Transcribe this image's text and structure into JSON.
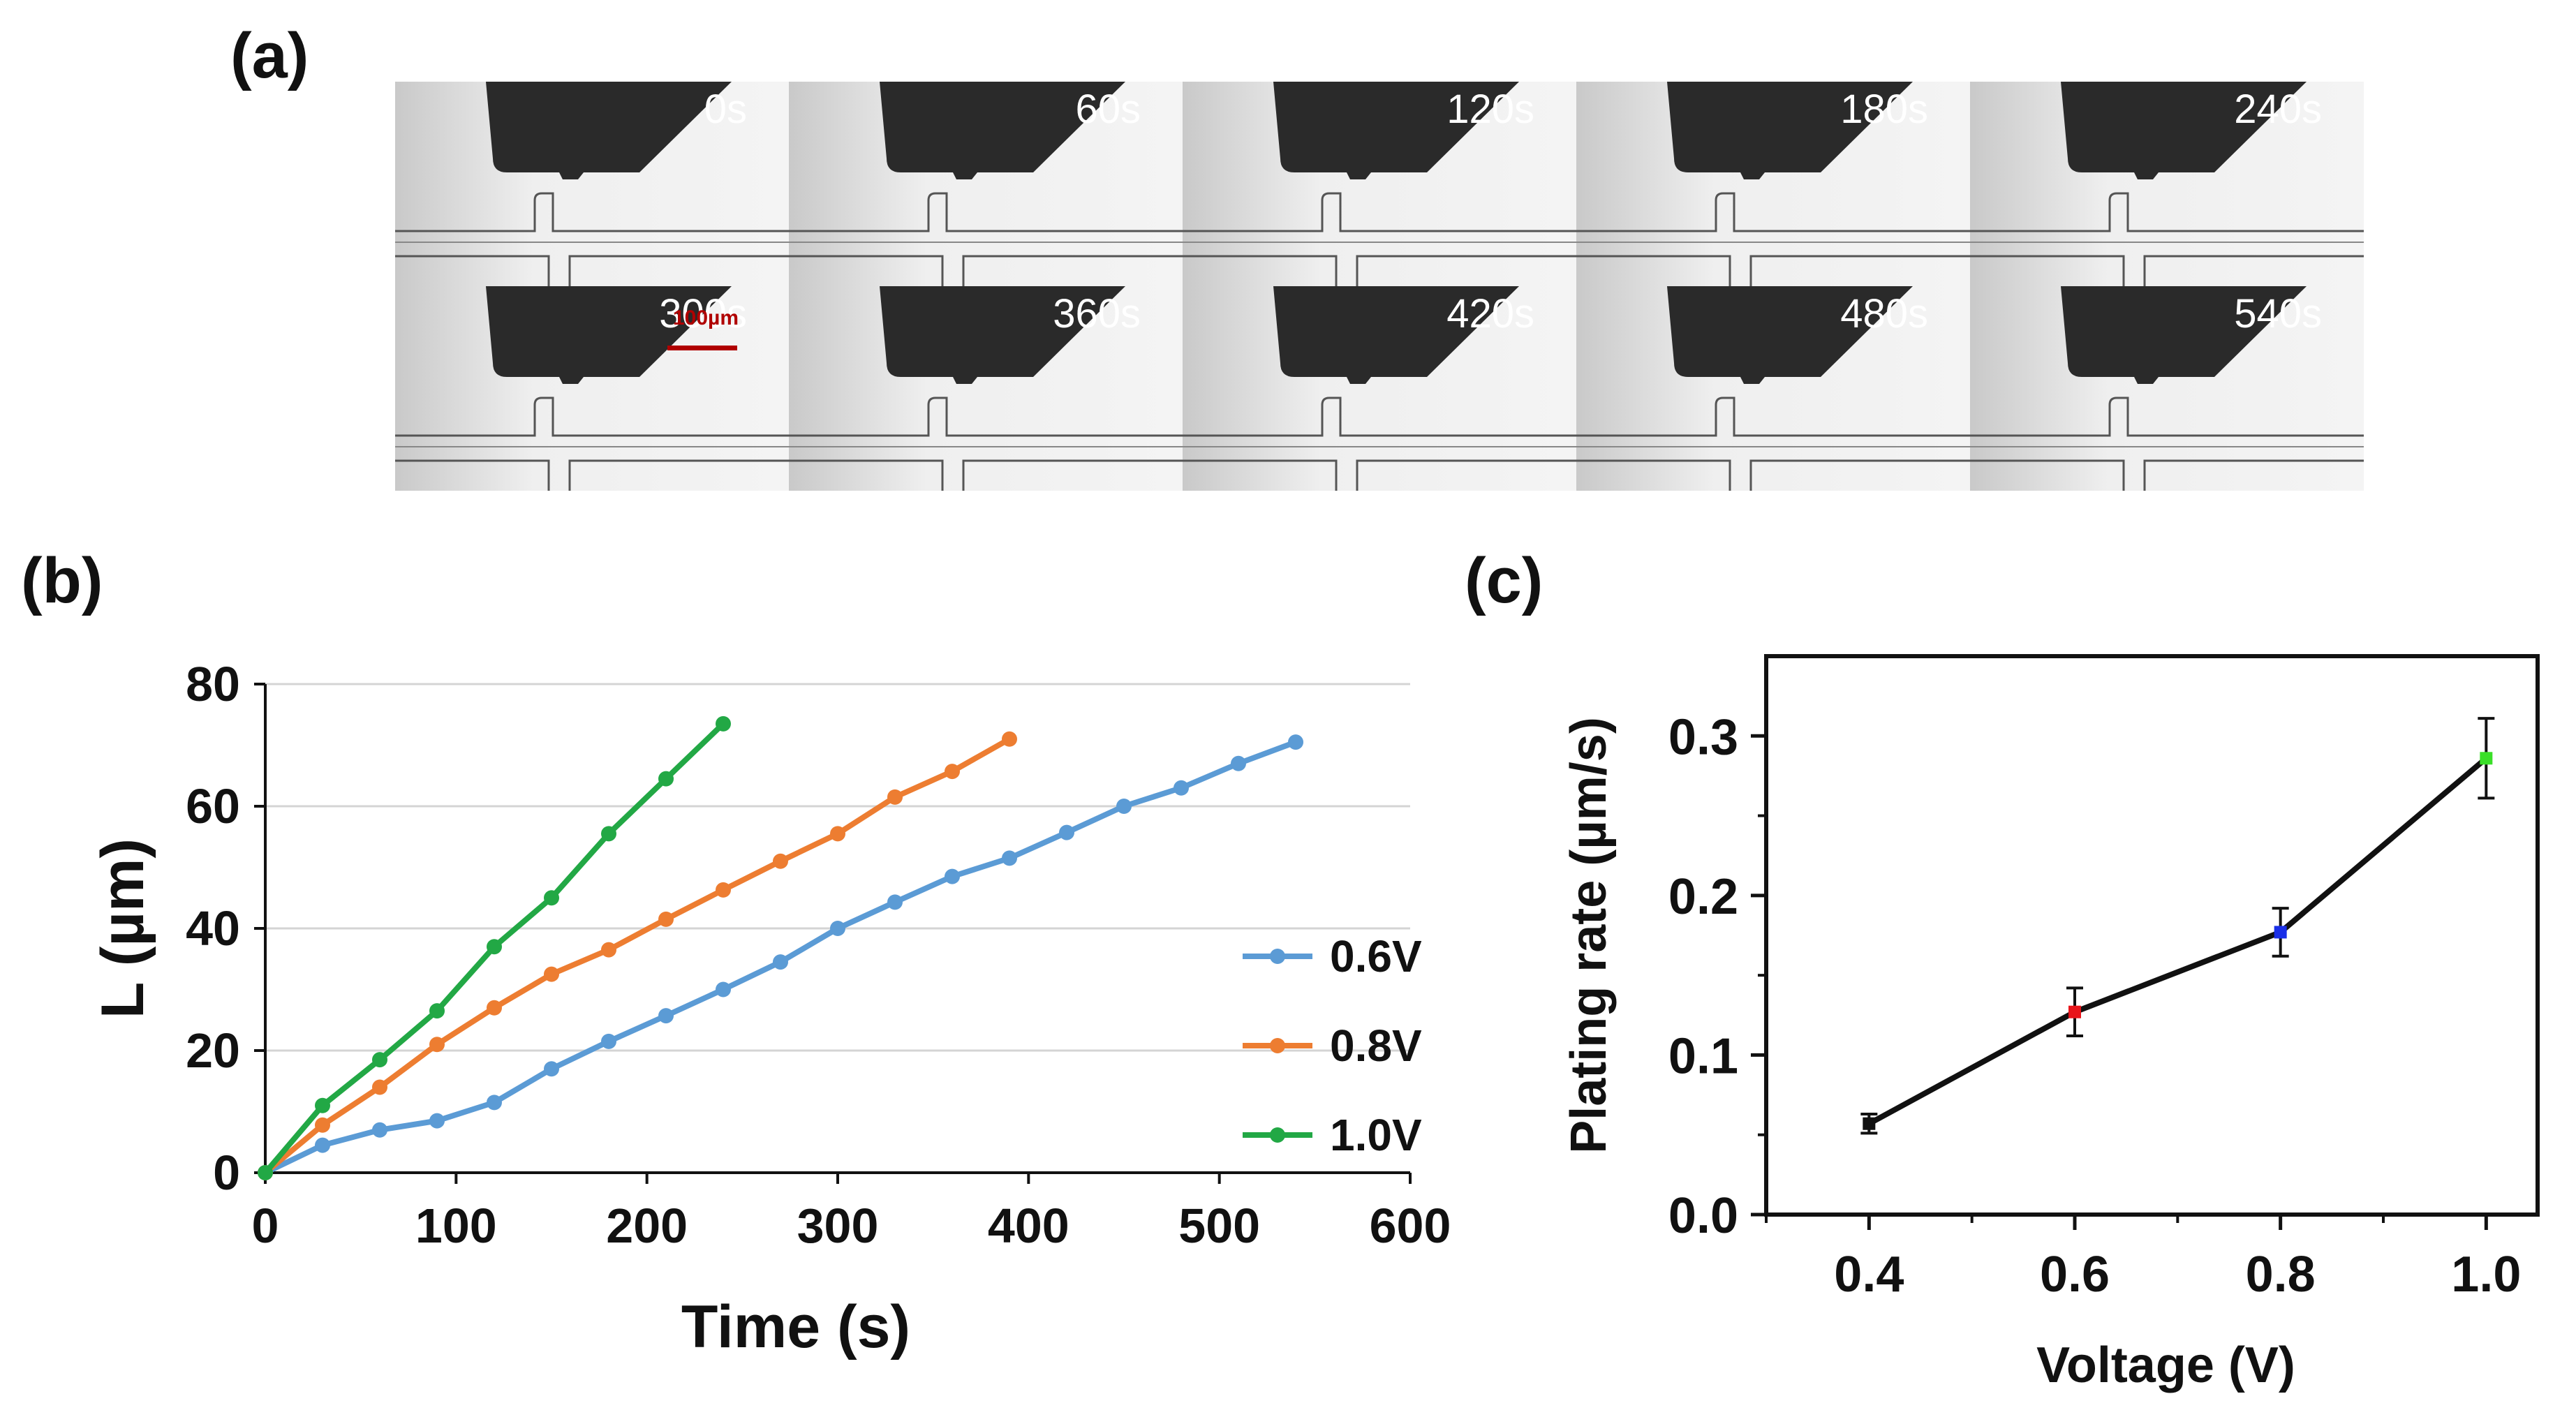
{
  "panel_labels": {
    "a": "(a)",
    "b": "(b)",
    "c": "(c)"
  },
  "panel_a": {
    "frames": [
      "0s",
      "60s",
      "120s",
      "180s",
      "240s",
      "300s",
      "360s",
      "420s",
      "480s",
      "540s"
    ],
    "scale_bar": "100µm",
    "scale_bar_color": "#b00000"
  },
  "chart_data": [
    {
      "id": "b",
      "type": "line",
      "xlabel": "Time (s)",
      "ylabel": "L (µm)",
      "xlim": [
        0,
        600
      ],
      "ylim": [
        0,
        80
      ],
      "xticks": [
        0,
        100,
        200,
        300,
        400,
        500,
        600
      ],
      "yticks": [
        0,
        20,
        40,
        60,
        80
      ],
      "grid": true,
      "legend_position": "right",
      "series": [
        {
          "name": "0.6V",
          "color": "#5b9bd5",
          "x": [
            0,
            30,
            60,
            90,
            120,
            150,
            180,
            210,
            240,
            270,
            300,
            330,
            360,
            390,
            420,
            450,
            480,
            510,
            540
          ],
          "y": [
            0,
            4.5,
            7,
            8.5,
            11.5,
            17,
            21.5,
            25.7,
            30,
            34.5,
            40,
            44.3,
            48.5,
            51.5,
            55.7,
            60,
            63,
            67,
            70.5
          ]
        },
        {
          "name": "0.8V",
          "color": "#ed7d31",
          "x": [
            0,
            30,
            60,
            90,
            120,
            150,
            180,
            210,
            240,
            270,
            300,
            330,
            360,
            390
          ],
          "y": [
            0,
            7.8,
            14,
            21,
            27,
            32.5,
            36.5,
            41.5,
            46.3,
            51,
            55.5,
            61.5,
            65.7,
            71
          ]
        },
        {
          "name": "1.0V",
          "color": "#22a845",
          "x": [
            0,
            30,
            60,
            90,
            120,
            150,
            180,
            210,
            240
          ],
          "y": [
            0,
            11,
            18.5,
            26.5,
            37,
            45,
            55.5,
            64.5,
            73.5
          ]
        }
      ]
    },
    {
      "id": "c",
      "type": "line",
      "xlabel": "Voltage (V)",
      "ylabel": "Plating rate (µm/s)",
      "xlim": [
        0.3,
        1.05
      ],
      "ylim": [
        0,
        0.35
      ],
      "xticks": [
        0.4,
        0.6,
        0.8,
        1.0
      ],
      "xtick_labels": [
        "0.4",
        "0.6",
        "0.8",
        "1.0"
      ],
      "yticks": [
        0,
        0.1,
        0.2,
        0.3
      ],
      "ytick_labels": [
        "0.0",
        "0.1",
        "0.2",
        "0.3"
      ],
      "grid": false,
      "series": [
        {
          "name": "Plating rate",
          "x": [
            0.4,
            0.6,
            0.8,
            1.0
          ],
          "y": [
            0.057,
            0.127,
            0.177,
            0.286
          ],
          "error": [
            0.006,
            0.015,
            0.015,
            0.025
          ],
          "marker_colors": [
            "#111111",
            "#e8141a",
            "#1a2fe8",
            "#3adf28"
          ]
        }
      ]
    }
  ]
}
